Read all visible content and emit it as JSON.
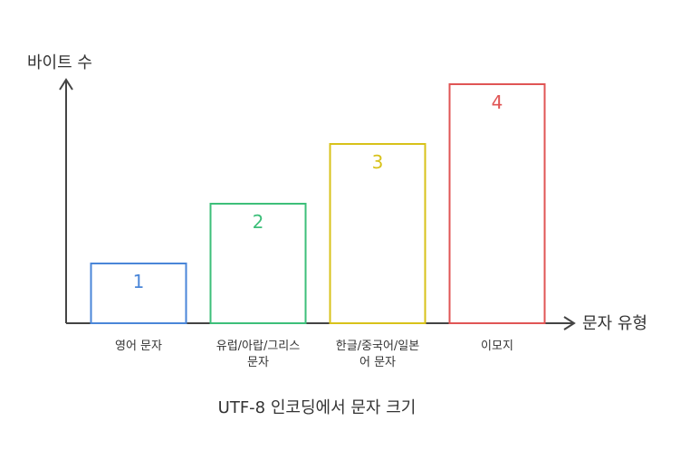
{
  "chart_data": {
    "type": "bar",
    "title": "UTF-8 인코딩에서 문자 크기",
    "xlabel": "문자 유형",
    "ylabel": "바이트 수",
    "ylim": [
      0,
      4
    ],
    "grid": false,
    "categories": [
      [
        "영어 문자"
      ],
      [
        "유럽/아랍/그리스",
        "문자"
      ],
      [
        "한글/중국어/일본",
        "어 문자"
      ],
      [
        "이모지"
      ]
    ],
    "values": [
      1,
      2,
      3,
      4
    ],
    "value_labels": [
      "1",
      "2",
      "3",
      "4"
    ],
    "colors": [
      "#4a86d8",
      "#3dbf7a",
      "#d8c21a",
      "#e05555"
    ]
  }
}
